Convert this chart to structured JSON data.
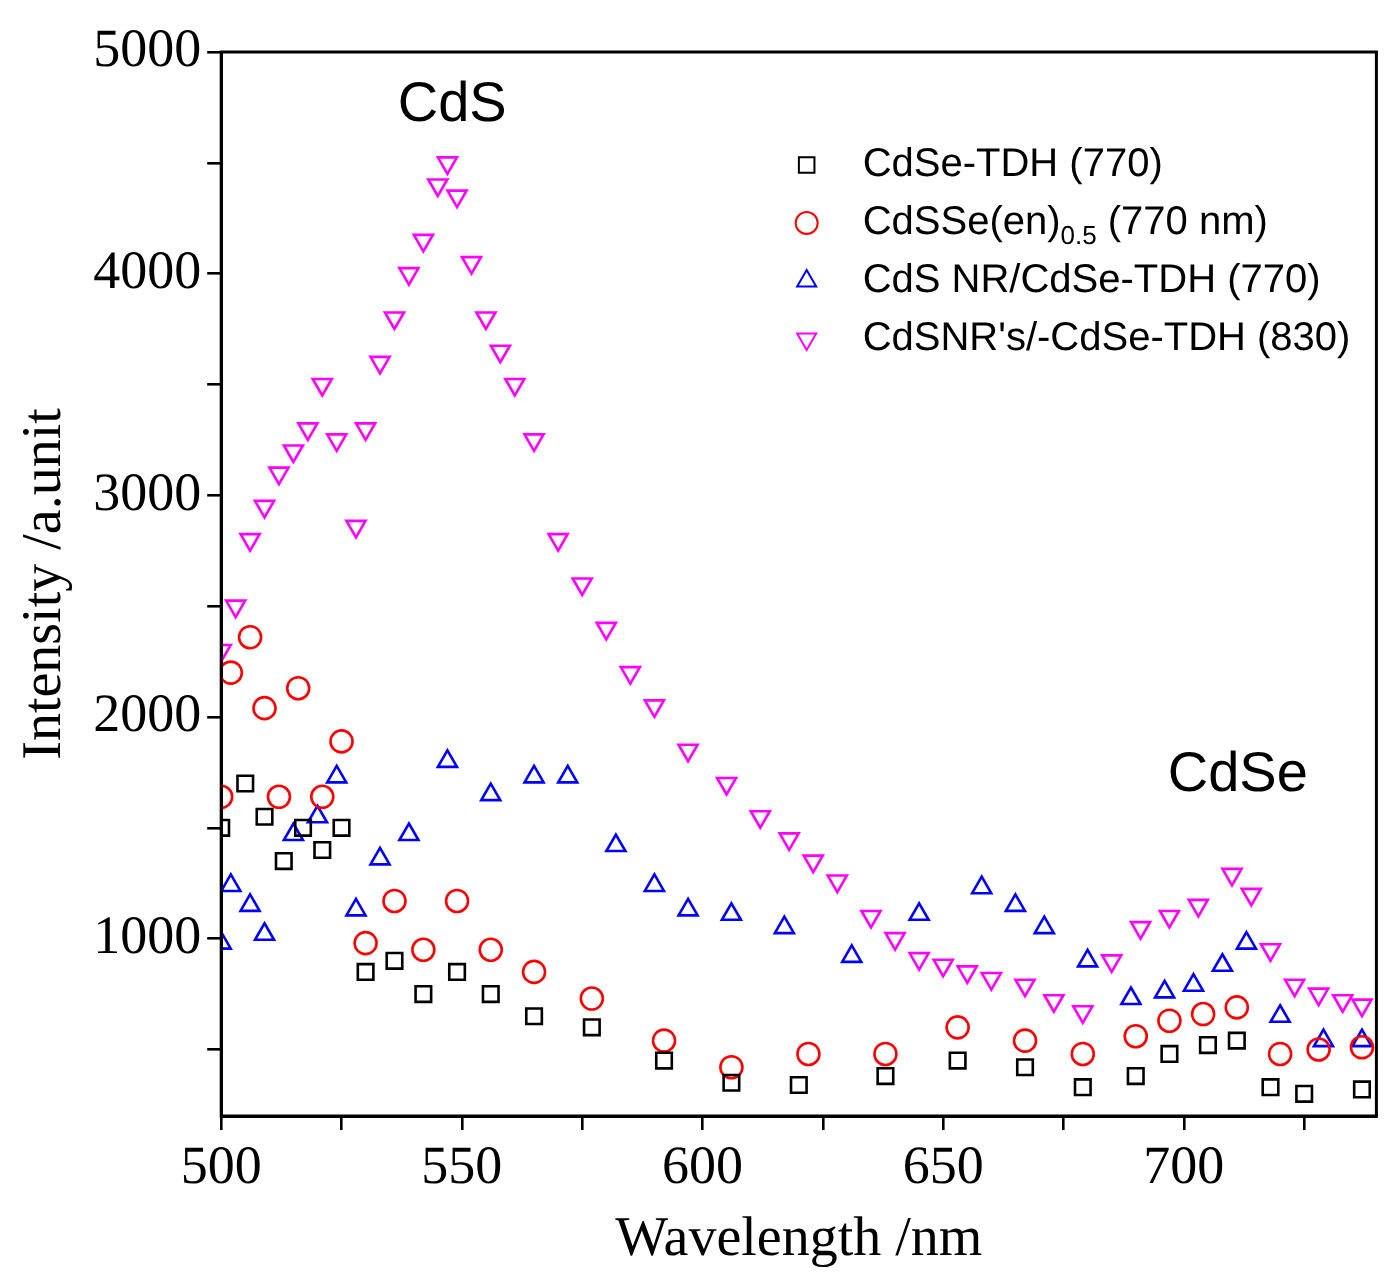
{
  "chart_data": {
    "type": "scatter",
    "xlabel": "Wavelength /nm",
    "ylabel": "Intensity /a.unit",
    "xlim": [
      500,
      740
    ],
    "ylim": [
      200,
      5000
    ],
    "xticks": [
      500,
      {
        "value": 525,
        "label": null
      },
      550,
      {
        "value": 575,
        "label": null
      },
      600,
      {
        "value": 625,
        "label": null
      },
      650,
      {
        "value": 675,
        "label": null
      },
      700,
      {
        "value": 725,
        "label": null
      }
    ],
    "yticks": [
      {
        "value": 500,
        "label": null
      },
      1000,
      {
        "value": 1500,
        "label": null
      },
      2000,
      {
        "value": 2500,
        "label": null
      },
      3000,
      {
        "value": 3500,
        "label": null
      },
      4000,
      {
        "value": 4500,
        "label": null
      },
      5000
    ],
    "grid": false,
    "legend": "top right",
    "annotations": [
      "CdS",
      "CdSe"
    ],
    "series": [
      {
        "name": "CdSe-TDH (770)",
        "color": "#000000",
        "marker": "square",
        "x": [
          500,
          505,
          509,
          513,
          517,
          521,
          525,
          530,
          536,
          542,
          549,
          556,
          565,
          577,
          592,
          606,
          620,
          638,
          653,
          667,
          679,
          690,
          697,
          705,
          711,
          718,
          725,
          737
        ],
        "values": [
          1500,
          1700,
          1550,
          1350,
          1500,
          1400,
          1500,
          850,
          900,
          750,
          850,
          750,
          650,
          600,
          450,
          350,
          340,
          380,
          450,
          420,
          330,
          380,
          480,
          520,
          540,
          330,
          300,
          320
        ]
      },
      {
        "name": "CdSSe(en)$_{0.5}$ (770 nm)",
        "color": "#ff0000",
        "marker": "circle",
        "x": [
          500,
          502,
          506,
          509,
          512,
          516,
          521,
          525,
          530,
          536,
          542,
          549,
          556,
          565,
          577,
          592,
          606,
          622,
          638,
          653,
          667,
          679,
          690,
          697,
          704,
          711,
          720,
          728,
          737
        ],
        "values": [
          1640,
          2200,
          2360,
          2040,
          1640,
          2130,
          1640,
          1890,
          980,
          1170,
          950,
          1170,
          950,
          850,
          730,
          540,
          420,
          480,
          480,
          600,
          540,
          480,
          560,
          630,
          660,
          690,
          480,
          500,
          510
        ]
      },
      {
        "name": "CdS NR/CdSe-TDH (770)",
        "color": "#0000ff",
        "marker": "triangle",
        "x": [
          500,
          502,
          506,
          509,
          515,
          520,
          524,
          528,
          533,
          539,
          547,
          556,
          565,
          572,
          582,
          590,
          597,
          606,
          617,
          631,
          645,
          658,
          665,
          671,
          680,
          689,
          696,
          702,
          708,
          713,
          720,
          729,
          737
        ],
        "values": [
          980,
          1240,
          1150,
          1020,
          1470,
          1550,
          1730,
          1130,
          1360,
          1470,
          1800,
          1650,
          1730,
          1730,
          1420,
          1240,
          1130,
          1110,
          1050,
          920,
          1110,
          1230,
          1150,
          1050,
          900,
          730,
          760,
          790,
          880,
          980,
          650,
          540,
          540
        ]
      },
      {
        "name": "CdSNR's/-CdSe-TDH (830)",
        "color": "#ff00ff",
        "marker": "triangle_down",
        "x": [
          500,
          503,
          506,
          509,
          512,
          515,
          518,
          521,
          524,
          528,
          530,
          533,
          536,
          539,
          542,
          545,
          547,
          549,
          552,
          555,
          558,
          561,
          565,
          570,
          575,
          580,
          585,
          590,
          597,
          605,
          612,
          618,
          623,
          628,
          635,
          640,
          645,
          650,
          655,
          660,
          667,
          673,
          679,
          685,
          691,
          697,
          703,
          710,
          714,
          718,
          723,
          728,
          733,
          737
        ],
        "values": [
          2300,
          2500,
          2800,
          2950,
          3100,
          3200,
          3300,
          3500,
          3250,
          2860,
          3300,
          3600,
          3800,
          4000,
          4150,
          4400,
          4500,
          4350,
          4050,
          3800,
          3650,
          3500,
          3250,
          2800,
          2600,
          2400,
          2200,
          2050,
          1850,
          1700,
          1550,
          1450,
          1350,
          1260,
          1100,
          1000,
          910,
          880,
          850,
          820,
          790,
          720,
          670,
          900,
          1050,
          1100,
          1150,
          1290,
          1200,
          950,
          790,
          750,
          720,
          700
        ]
      }
    ]
  }
}
